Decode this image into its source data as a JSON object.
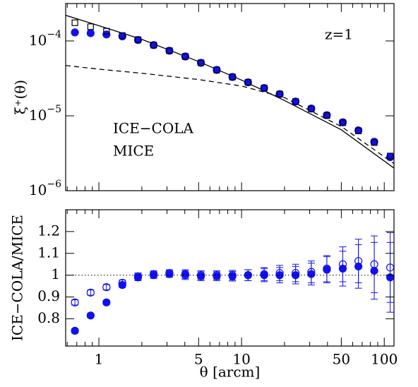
{
  "chart_data": [
    {
      "type": "scatter",
      "log_x": true,
      "log_y": true,
      "y_label": "ξ⁺(θ)",
      "annotation": "z=1",
      "x": [
        0.679,
        0.875,
        1.13,
        1.46,
        1.88,
        2.42,
        3.12,
        4.03,
        5.19,
        6.7,
        8.63,
        11.1,
        14.4,
        18.5,
        23.9,
        30.8,
        39.6,
        51.2,
        65.9,
        85.1,
        110
      ],
      "xlim": [
        0.585,
        117
      ],
      "ylim": [
        1e-06,
        0.000316
      ],
      "yticks": [
        {
          "value": 1e-06,
          "label": "10",
          "exponent": "−6"
        },
        {
          "value": 1e-05,
          "label": "10",
          "exponent": "−5"
        },
        {
          "value": 0.0001,
          "label": "10",
          "exponent": "−4"
        }
      ],
      "series": [
        {
          "name": "ICE−COLA",
          "color": "#1010f0",
          "marker": "filled-circle",
          "values": [
            0.00013,
            0.000127,
            0.000122,
            0.000115,
            0.000103,
            8.8e-05,
            7.4e-05,
            6.2e-05,
            5.1e-05,
            4.1e-05,
            3.3e-05,
            2.8e-05,
            2.35e-05,
            1.95e-05,
            1.55e-05,
            1.25e-05,
            1.02e-05,
            8.2e-06,
            6.4e-06,
            4.5e-06,
            2.8e-06
          ]
        },
        {
          "name": "MICE",
          "color": "#000000",
          "marker": "open-square",
          "values": [
            0.000175,
            0.000155,
            0.000135,
            0.000118,
            0.000104,
            8.8e-05,
            7.4e-05,
            6.2e-05,
            5.1e-05,
            4.1e-05,
            3.3e-05,
            2.8e-05,
            2.35e-05,
            1.95e-05,
            1.55e-05,
            1.24e-05,
            1.01e-05,
            8.1e-06,
            6.3e-06,
            4.4e-06,
            2.9e-06
          ]
        }
      ],
      "lines": [
        {
          "style": "solid",
          "color": "#000000",
          "x": [
            0.585,
            1,
            2,
            5,
            10,
            20,
            50,
            117
          ],
          "values": [
            0.00022,
            0.00016,
            0.000105,
            5.3e-05,
            3e-05,
            1.6e-05,
            6.5e-06,
            2e-06
          ]
        },
        {
          "style": "dashed",
          "color": "#000000",
          "x": [
            0.585,
            1,
            2,
            5,
            10,
            20,
            50,
            117
          ],
          "values": [
            4.7e-05,
            4.2e-05,
            3.7e-05,
            3.05e-05,
            2.5e-05,
            1.75e-05,
            7.2e-06,
            2.3e-06
          ]
        }
      ]
    },
    {
      "type": "scatter",
      "log_x": true,
      "x_label": "θ [arcm]",
      "y_label": "ICE−COLA/MICE",
      "x": [
        0.679,
        0.875,
        1.13,
        1.46,
        1.88,
        2.42,
        3.12,
        4.03,
        5.19,
        6.7,
        8.63,
        11.1,
        14.4,
        18.5,
        23.9,
        30.8,
        39.6,
        51.2,
        65.9,
        85.1,
        110
      ],
      "xlim": [
        0.585,
        117
      ],
      "xticks": [
        1,
        5,
        10,
        50,
        100
      ],
      "xminorticks": [
        0.6,
        0.7,
        0.8,
        0.9,
        2,
        3,
        4,
        6,
        7,
        8,
        9,
        20,
        30,
        40,
        60,
        70,
        80,
        90
      ],
      "ylim": [
        0.675,
        1.3
      ],
      "yticks": [
        0.8,
        0.9,
        1,
        1.1,
        1.2
      ],
      "reference_line": 1,
      "series": [
        {
          "color": "#1010f0",
          "marker": "filled-circle",
          "values": [
            0.745,
            0.815,
            0.875,
            0.955,
            0.99,
            1.0,
            1.005,
            1.005,
            0.995,
            0.995,
            0.995,
            1.0,
            1.0,
            1.0,
            1.0,
            1.005,
            1.025,
            1.03,
            1.04,
            1.02,
            0.99
          ],
          "errors": [
            0.01,
            0.01,
            0.01,
            0.012,
            0.015,
            0.015,
            0.015,
            0.02,
            0.02,
            0.02,
            0.022,
            0.025,
            0.03,
            0.035,
            0.04,
            0.05,
            0.06,
            0.08,
            0.1,
            0.13,
            0.16
          ]
        },
        {
          "color": "#1010f0",
          "marker": "open-circle",
          "values": [
            0.875,
            0.92,
            0.945,
            0.965,
            0.995,
            1.005,
            1.01,
            1.0,
            1.0,
            1.0,
            1.0,
            1.0,
            1.005,
            1.01,
            1.01,
            1.015,
            1.03,
            1.05,
            1.065,
            1.05,
            1.035
          ],
          "errors": [
            0.012,
            0.012,
            0.012,
            0.013,
            0.015,
            0.015,
            0.015,
            0.02,
            0.02,
            0.02,
            0.022,
            0.025,
            0.03,
            0.035,
            0.04,
            0.05,
            0.06,
            0.08,
            0.1,
            0.13,
            0.16
          ]
        }
      ]
    }
  ]
}
